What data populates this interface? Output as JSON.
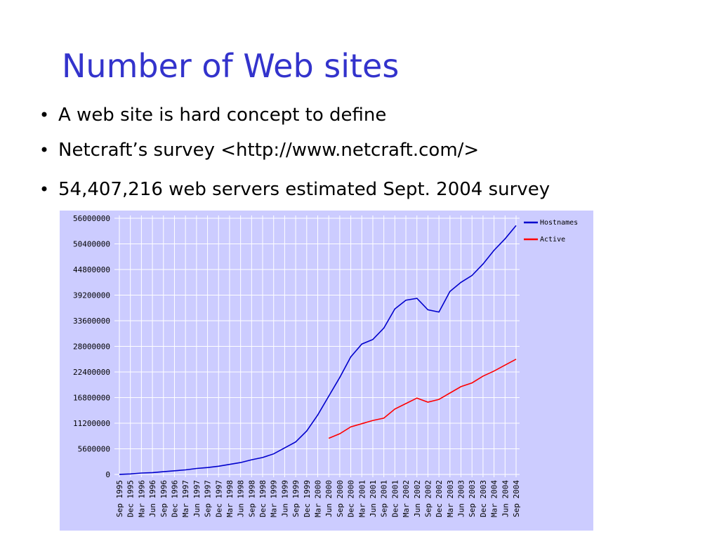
{
  "slide": {
    "title": "Number of Web sites",
    "bullets": [
      "A web site  is hard concept to define",
      "Netcraft’s survey <http://www.netcraft.com/>",
      "54,407,216 web servers estimated Sept. 2004 survey"
    ]
  },
  "chart_data": {
    "type": "line",
    "categories": [
      "Sep 1995",
      "Dec 1995",
      "Mar 1996",
      "Jun 1996",
      "Sep 1996",
      "Dec 1996",
      "Mar 1997",
      "Jun 1997",
      "Sep 1997",
      "Dec 1997",
      "Mar 1998",
      "Jun 1998",
      "Sep 1998",
      "Dec 1998",
      "Mar 1999",
      "Jun 1999",
      "Sep 1999",
      "Dec 1999",
      "Mar 2000",
      "Jun 2000",
      "Sep 2000",
      "Dec 2000",
      "Mar 2001",
      "Jun 2001",
      "Sep 2001",
      "Dec 2001",
      "Mar 2002",
      "Jun 2002",
      "Sep 2002",
      "Dec 2002",
      "Mar 2003",
      "Jun 2003",
      "Sep 2003",
      "Dec 2003",
      "Mar 2004",
      "Jun 2004",
      "Sep 2004"
    ],
    "series": [
      {
        "name": "Hostnames",
        "color": "#0000cc",
        "values": [
          20000,
          100000,
          300000,
          400000,
          600000,
          800000,
          1000000,
          1300000,
          1500000,
          1800000,
          2200000,
          2600000,
          3200000,
          3700000,
          4500000,
          5800000,
          7100000,
          9500000,
          13000000,
          17100000,
          21200000,
          25700000,
          28500000,
          29500000,
          32000000,
          36200000,
          38100000,
          38500000,
          36000000,
          35500000,
          40000000,
          42000000,
          43500000,
          46000000,
          49000000,
          51500000,
          54400000
        ]
      },
      {
        "name": "Active",
        "color": "#ff0000",
        "values": [
          null,
          null,
          null,
          null,
          null,
          null,
          null,
          null,
          null,
          null,
          null,
          null,
          null,
          null,
          null,
          null,
          null,
          null,
          null,
          7900000,
          8900000,
          10400000,
          11100000,
          11800000,
          12300000,
          14300000,
          15500000,
          16700000,
          15800000,
          16400000,
          17800000,
          19200000,
          20000000,
          21500000,
          22600000,
          23900000,
          25200000
        ]
      }
    ],
    "ylim": [
      0,
      56000000
    ],
    "yticks": [
      0,
      5600000,
      11200000,
      16800000,
      22400000,
      28000000,
      33600000,
      39200000,
      44800000,
      50400000,
      56000000
    ],
    "grid": true,
    "legend": "top-right"
  }
}
